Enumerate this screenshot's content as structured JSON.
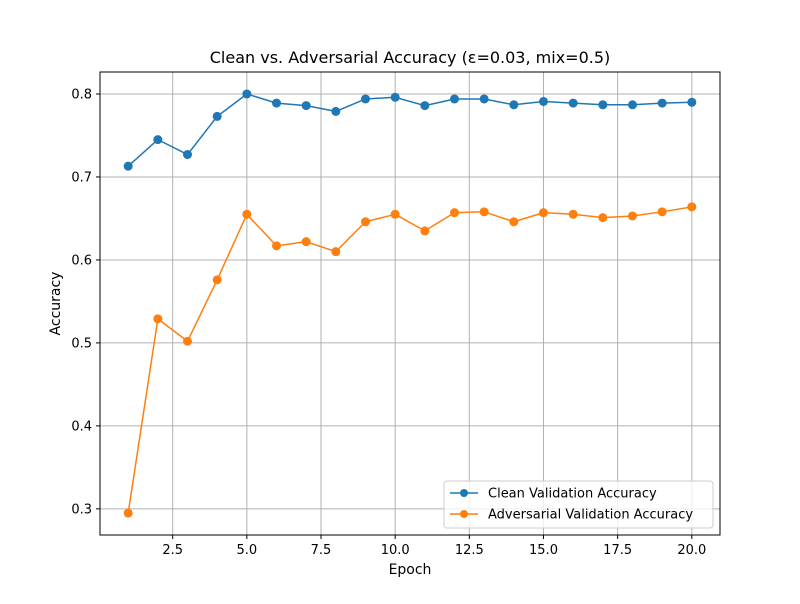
{
  "chart_data": {
    "type": "line",
    "title": "Clean vs. Adversarial Accuracy (ε=0.03, mix=0.5)",
    "xlabel": "Epoch",
    "ylabel": "Accuracy",
    "xlim": [
      0.05,
      20.95
    ],
    "ylim": [
      0.2685,
      0.8265
    ],
    "xticks": [
      2.5,
      5.0,
      7.5,
      10.0,
      12.5,
      15.0,
      17.5,
      20.0
    ],
    "xtick_labels": [
      "2.5",
      "5.0",
      "7.5",
      "10.0",
      "12.5",
      "15.0",
      "17.5",
      "20.0"
    ],
    "yticks": [
      0.3,
      0.4,
      0.5,
      0.6,
      0.7,
      0.8
    ],
    "ytick_labels": [
      "0.3",
      "0.4",
      "0.5",
      "0.6",
      "0.7",
      "0.8"
    ],
    "grid": true,
    "legend_position": "lower-right",
    "x": [
      1,
      2,
      3,
      4,
      5,
      6,
      7,
      8,
      9,
      10,
      11,
      12,
      13,
      14,
      15,
      16,
      17,
      18,
      19,
      20
    ],
    "series": [
      {
        "name": "Clean Validation Accuracy",
        "color": "#1f77b4",
        "marker": "circle",
        "values": [
          0.713,
          0.745,
          0.727,
          0.773,
          0.8,
          0.789,
          0.786,
          0.779,
          0.794,
          0.796,
          0.786,
          0.794,
          0.794,
          0.787,
          0.791,
          0.789,
          0.787,
          0.787,
          0.789,
          0.79
        ]
      },
      {
        "name": "Adversarial Validation Accuracy",
        "color": "#ff7f0e",
        "marker": "circle",
        "values": [
          0.295,
          0.529,
          0.502,
          0.576,
          0.655,
          0.617,
          0.622,
          0.61,
          0.646,
          0.655,
          0.635,
          0.657,
          0.658,
          0.646,
          0.657,
          0.655,
          0.651,
          0.653,
          0.658,
          0.664
        ]
      }
    ]
  }
}
